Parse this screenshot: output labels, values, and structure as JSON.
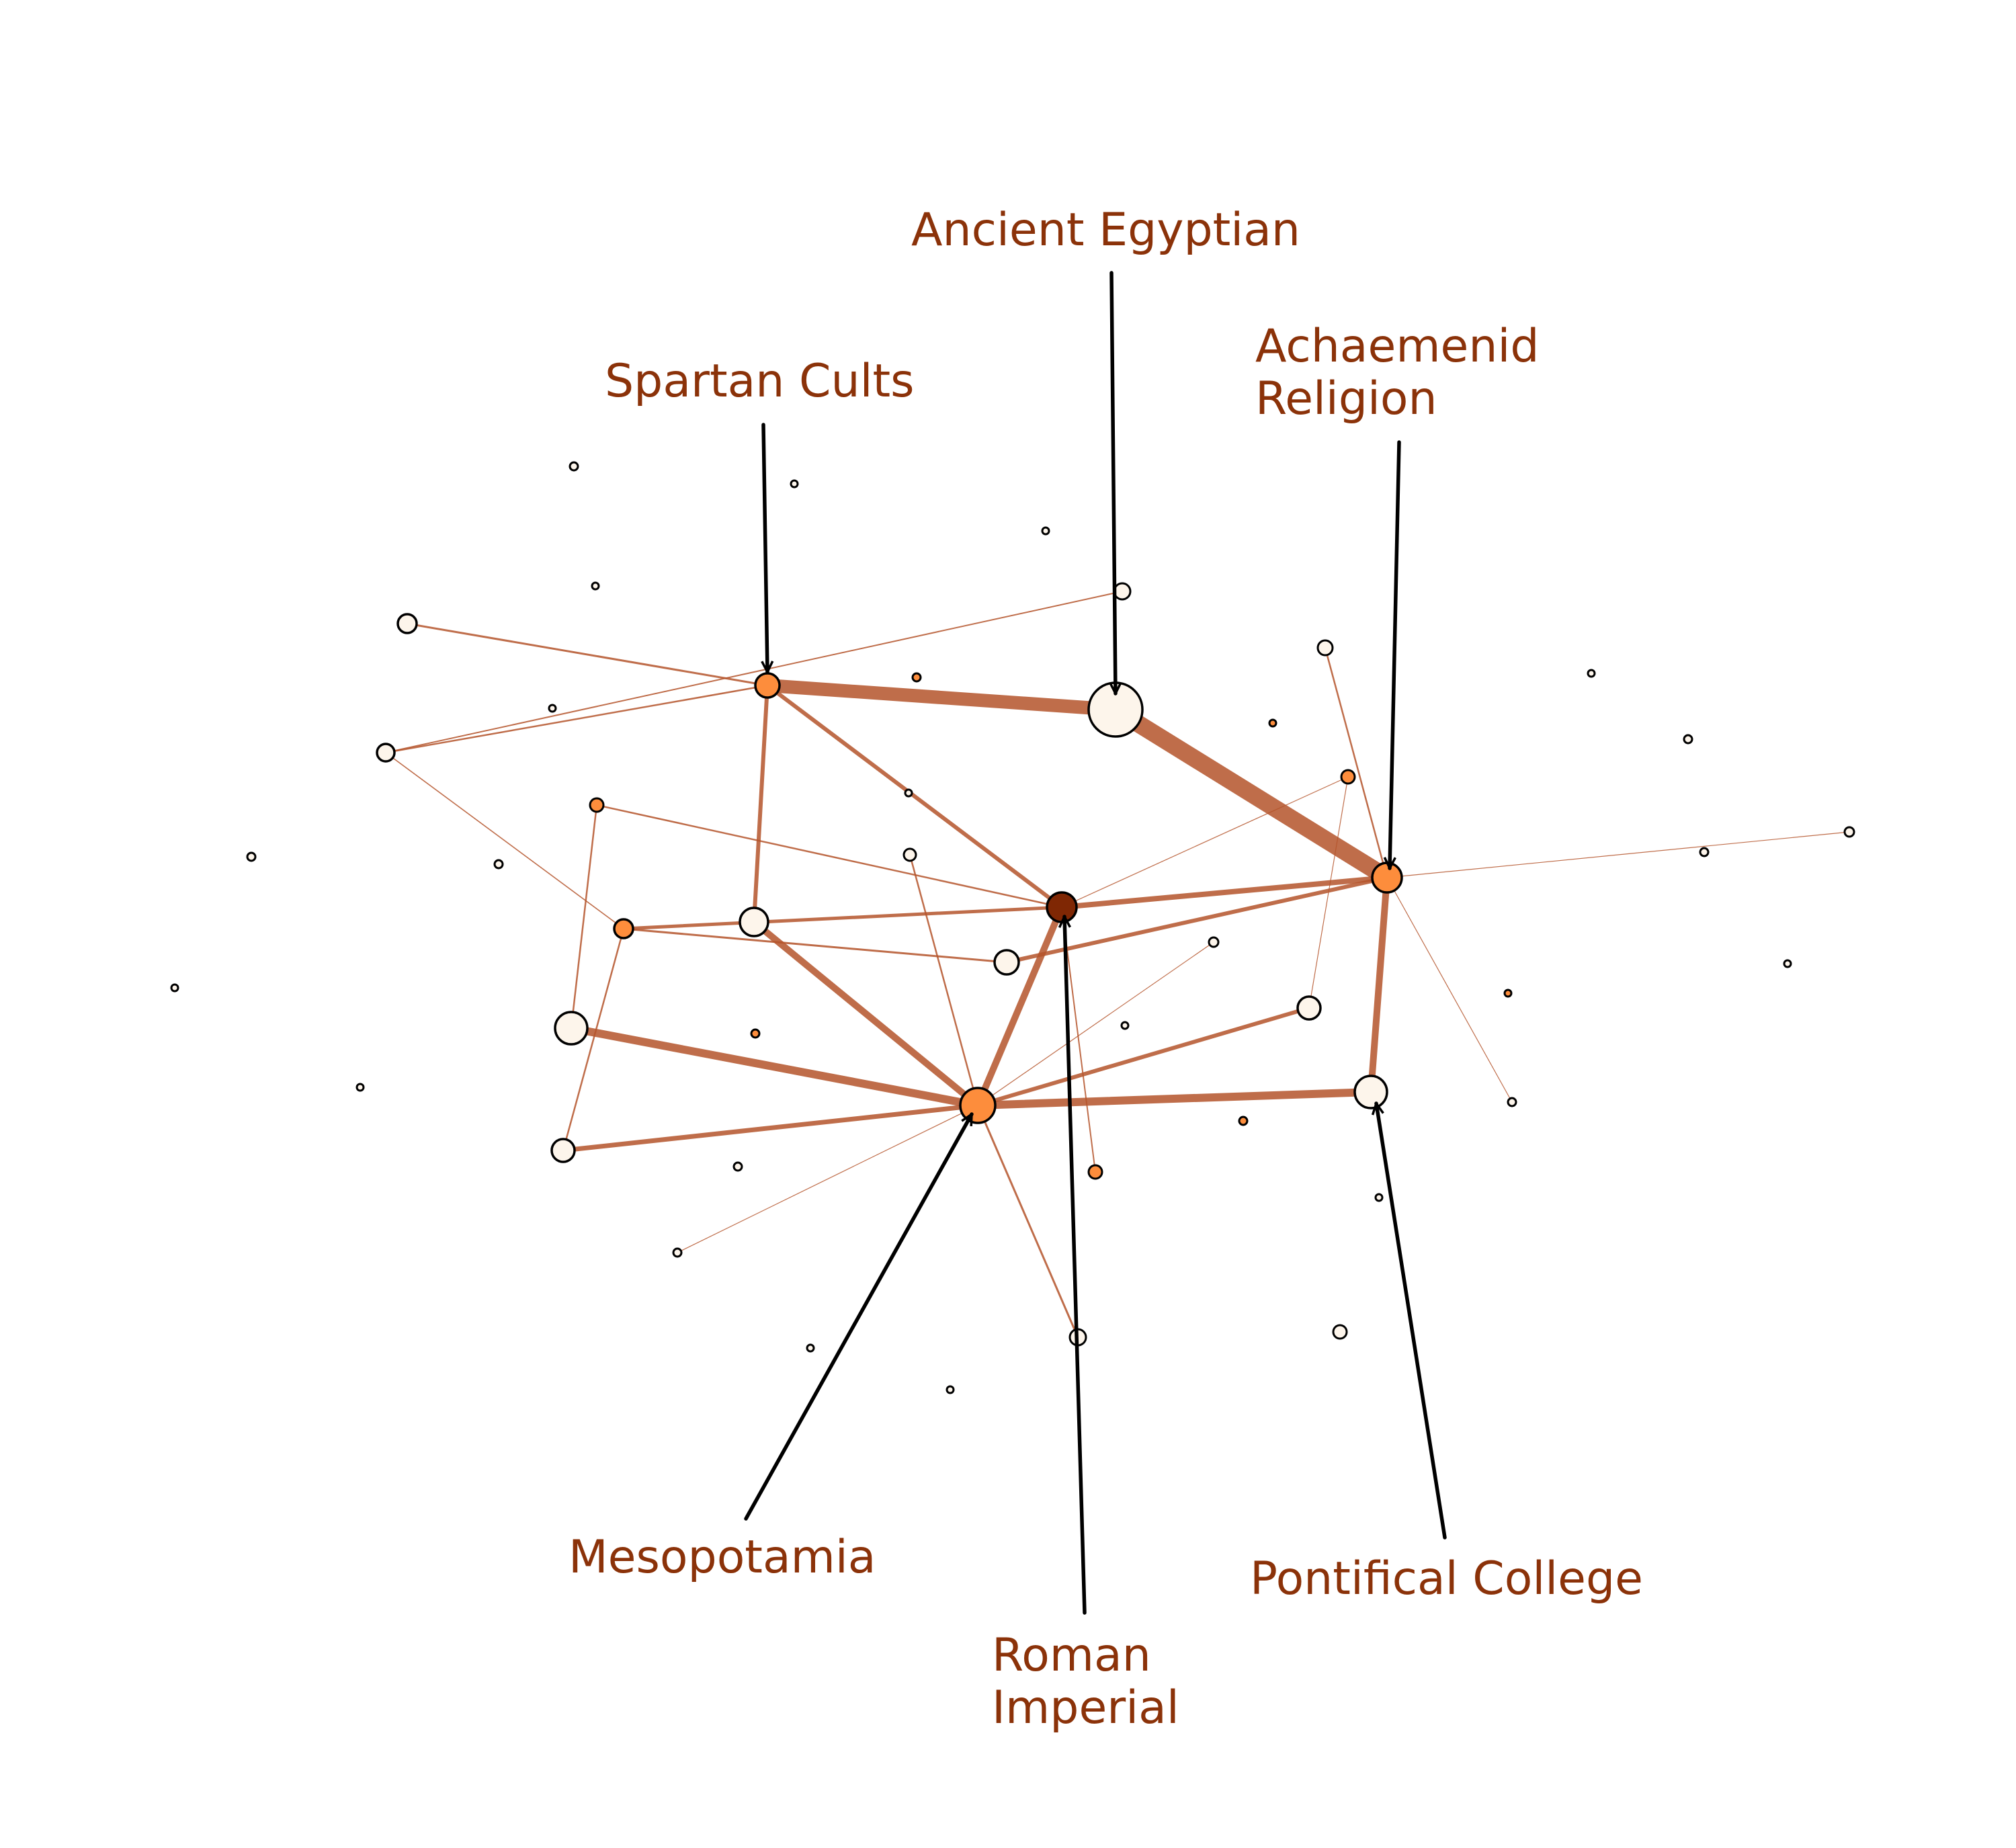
{
  "colors": {
    "background": "#ffffff",
    "edge": "#b4532a",
    "label_text": "#8b3209",
    "arrow": "#000000",
    "node_stroke": "#000000",
    "node_fill_light": "#fdf5eb",
    "node_fill_orange": "#fd8d3c",
    "node_fill_dark": "#7f2704"
  },
  "labels": {
    "ancient_egyptian": [
      "Ancient Egyptian"
    ],
    "spartan_cults": [
      "Spartan Cults"
    ],
    "achaemenid_religion": [
      "Achaemenid",
      "Religion"
    ],
    "mesopotamia": [
      "Mesopotamia"
    ],
    "roman_imperial": [
      "Roman",
      "Imperial"
    ],
    "pontifical_college": [
      "Pontifical College"
    ]
  }
}
